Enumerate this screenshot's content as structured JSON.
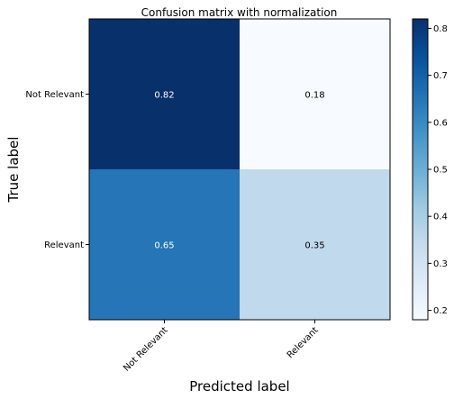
{
  "chart_data": {
    "type": "heatmap",
    "title": "Confusion matrix with normalization",
    "xlabel": "Predicted label",
    "ylabel": "True label",
    "x_categories": [
      "Not Relevant",
      "Relevant"
    ],
    "y_categories": [
      "Not Relevant",
      "Relevant"
    ],
    "values": [
      [
        0.82,
        0.18
      ],
      [
        0.65,
        0.35
      ]
    ],
    "cell_labels": [
      [
        "0.82",
        "0.18"
      ],
      [
        "0.65",
        "0.35"
      ]
    ],
    "colormap": "Blues",
    "colorbar": {
      "range": [
        0.18,
        0.82
      ],
      "ticks": [
        0.2,
        0.3,
        0.4,
        0.5,
        0.6,
        0.7,
        0.8
      ],
      "tick_labels": [
        "0.2",
        "0.3",
        "0.4",
        "0.5",
        "0.6",
        "0.7",
        "0.8"
      ]
    }
  }
}
